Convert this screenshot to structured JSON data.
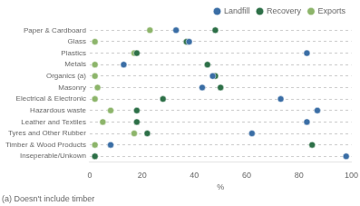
{
  "chart_data": {
    "type": "dot",
    "xlabel": "%",
    "annotations": [
      "(a) Doesn't include timber"
    ],
    "categories": [
      "Paper & Cardboard",
      "Glass",
      "Plastics",
      "Metals",
      "Organics (a)",
      "Masonry",
      "Electrical & Electronic",
      "Hazardous waste",
      "Leather and Textiles",
      "Tyres and Other Rubber",
      "Timber & Wood Products",
      "Inseperable/Unkown"
    ],
    "series": [
      {
        "name": "Landfill",
        "color": "#3B6EA5",
        "values": [
          33,
          38,
          83,
          13,
          47,
          43,
          73,
          87,
          83,
          62,
          8,
          98
        ]
      },
      {
        "name": "Recovery",
        "color": "#2E7048",
        "values": [
          48,
          37,
          18,
          45,
          48,
          50,
          28,
          18,
          18,
          22,
          85,
          2
        ]
      },
      {
        "name": "Exports",
        "color": "#8DB56B",
        "values": [
          23,
          2,
          17,
          2,
          2,
          3,
          2,
          8,
          5,
          17,
          2,
          2
        ]
      }
    ],
    "xlim": [
      0,
      100
    ],
    "xticks": [
      0,
      20,
      40,
      60,
      80,
      100
    ],
    "grid": true,
    "legend": "upper right"
  }
}
